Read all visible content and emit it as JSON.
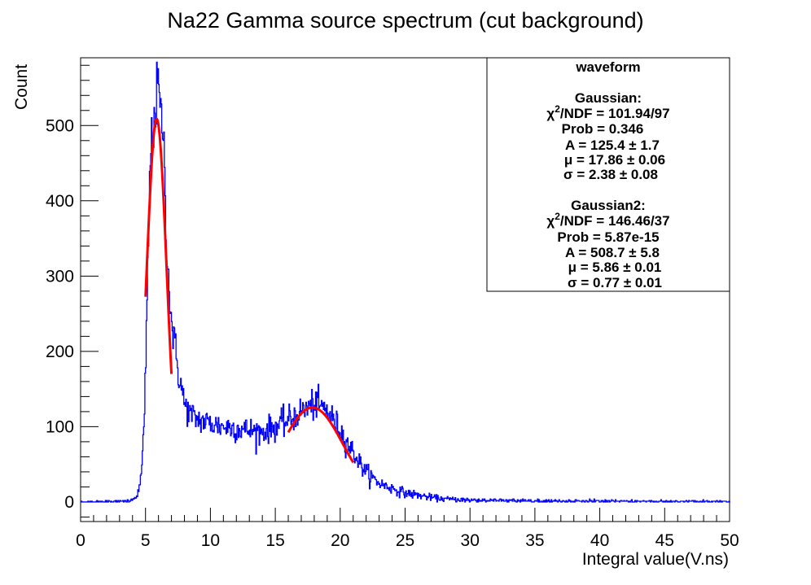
{
  "chart_data": {
    "type": "histogram",
    "title": "Na22 Gamma source spectrum (cut background)",
    "xlabel": "Integral value(V.ns)",
    "ylabel": "Count",
    "xlim": [
      0,
      50
    ],
    "ylim": [
      -26,
      590
    ],
    "x_ticks": [
      0,
      5,
      10,
      15,
      20,
      25,
      30,
      35,
      40,
      45,
      50
    ],
    "y_ticks": [
      0,
      100,
      200,
      300,
      400,
      500
    ],
    "histogram_color": "#0000ff",
    "fit_color": "#ff0000",
    "histogram_points": [
      [
        0,
        0
      ],
      [
        3.8,
        1
      ],
      [
        4.2,
        5
      ],
      [
        4.5,
        15
      ],
      [
        4.7,
        40
      ],
      [
        4.9,
        100
      ],
      [
        5.0,
        170
      ],
      [
        5.1,
        250
      ],
      [
        5.2,
        330
      ],
      [
        5.3,
        400
      ],
      [
        5.4,
        480
      ],
      [
        5.5,
        470
      ],
      [
        5.6,
        500
      ],
      [
        5.7,
        525
      ],
      [
        5.8,
        520
      ],
      [
        5.9,
        545
      ],
      [
        6.0,
        556
      ],
      [
        6.1,
        530
      ],
      [
        6.2,
        500
      ],
      [
        6.3,
        510
      ],
      [
        6.4,
        490
      ],
      [
        6.5,
        410
      ],
      [
        6.6,
        360
      ],
      [
        6.7,
        330
      ],
      [
        6.8,
        290
      ],
      [
        6.9,
        265
      ],
      [
        7.0,
        240
      ],
      [
        7.2,
        215
      ],
      [
        7.4,
        190
      ],
      [
        7.6,
        165
      ],
      [
        7.8,
        150
      ],
      [
        8.0,
        130
      ],
      [
        8.5,
        115
      ],
      [
        9.0,
        110
      ],
      [
        10,
        104
      ],
      [
        11,
        100
      ],
      [
        12,
        98
      ],
      [
        13,
        95
      ],
      [
        14,
        93
      ],
      [
        15,
        100
      ],
      [
        16,
        108
      ],
      [
        17,
        120
      ],
      [
        17.5,
        125
      ],
      [
        18,
        130
      ],
      [
        18.5,
        127
      ],
      [
        19,
        121
      ],
      [
        19.5,
        108
      ],
      [
        20,
        95
      ],
      [
        20.5,
        80
      ],
      [
        21,
        66
      ],
      [
        21.5,
        52
      ],
      [
        22,
        40
      ],
      [
        22.5,
        32
      ],
      [
        23,
        25
      ],
      [
        24,
        18
      ],
      [
        25,
        12
      ],
      [
        26,
        9
      ],
      [
        27,
        6
      ],
      [
        28,
        4
      ],
      [
        30,
        2.5
      ],
      [
        32,
        2
      ],
      [
        35,
        1.5
      ],
      [
        40,
        1
      ],
      [
        45,
        0.8
      ],
      [
        50,
        0.5
      ]
    ],
    "fits": [
      {
        "name": "Gaussian2",
        "amplitude": 508.7,
        "mean": 5.86,
        "sigma": 0.77,
        "range": [
          5.0,
          7.0
        ]
      },
      {
        "name": "Gaussian",
        "amplitude": 125.4,
        "mean": 17.86,
        "sigma": 2.38,
        "range": [
          16.0,
          21.0
        ]
      }
    ]
  },
  "stats_box": {
    "title": "waveform",
    "g1": {
      "name": "Gaussian:",
      "chi2_prefix": "χ",
      "chi2_sup": "2",
      "chi2_rest": "/NDF = 101.94/97",
      "prob": "Prob = 0.346",
      "a": "A = 125.4 ± 1.7",
      "mu": "μ = 17.86 ± 0.06",
      "sigma": "σ = 2.38 ± 0.08"
    },
    "g2": {
      "name": "Gaussian2:",
      "chi2_prefix": "χ",
      "chi2_sup": "2",
      "chi2_rest": "/NDF = 146.46/37",
      "prob": "Prob = 5.87e-15",
      "a": "A = 508.7 ± 5.8",
      "mu": "μ = 5.86 ± 0.01",
      "sigma": "σ = 0.77 ± 0.01"
    }
  }
}
